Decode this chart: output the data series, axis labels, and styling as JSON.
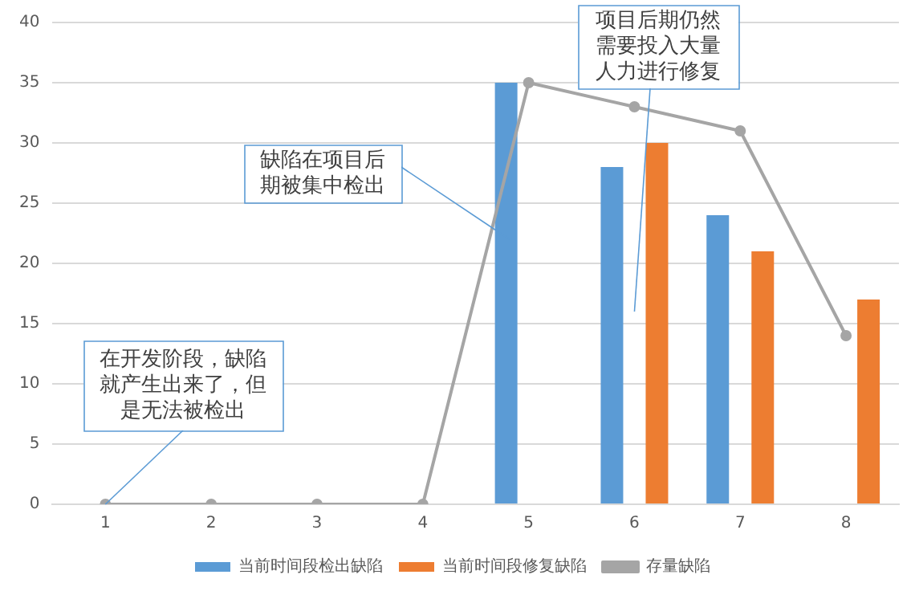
{
  "chart_data": {
    "type": "bar",
    "categories": [
      "1",
      "2",
      "3",
      "4",
      "5",
      "6",
      "7",
      "8"
    ],
    "series": [
      {
        "name": "当前时间段检出缺陷",
        "color": "#5b9bd5",
        "values": [
          null,
          null,
          null,
          null,
          35,
          28,
          24,
          null
        ]
      },
      {
        "name": "当前时间段修复缺陷",
        "color": "#ed7d31",
        "values": [
          null,
          null,
          null,
          null,
          null,
          30,
          21,
          17
        ]
      },
      {
        "name": "存量缺陷",
        "type": "line",
        "color": "#a5a5a5",
        "values": [
          0,
          0,
          0,
          0,
          35,
          33,
          31,
          14
        ]
      }
    ],
    "ylim": [
      0,
      40
    ],
    "yticks": [
      0,
      5,
      10,
      15,
      20,
      25,
      30,
      35,
      40
    ],
    "grid": "y",
    "legend": "bottom",
    "marker": "circle",
    "annotations": [
      {
        "text": "在开发阶段，缺陷就产生出来了，但是无法被检出",
        "x": "1",
        "y": 0
      },
      "缺陷在项目后期被集中检出",
      "项目后期仍然需要投入大量人力进行修复"
    ]
  }
}
